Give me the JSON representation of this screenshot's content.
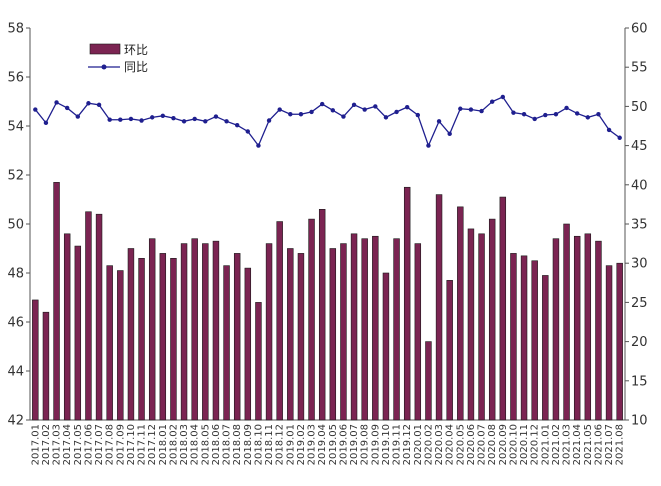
{
  "colors": {
    "bar_fill": "#7b2452",
    "bar_stroke": "#1a1a1a",
    "line": "#1f1f8f",
    "axis": "#555555"
  },
  "legend": {
    "bar_label": "环比",
    "line_label": "同比",
    "placement": "top-left"
  },
  "chart_data": {
    "type": "bar+line",
    "categories": [
      "2017.01",
      "2017.02",
      "2017.03",
      "2017.04",
      "2017.05",
      "2017.06",
      "2017.07",
      "2017.08",
      "2017.09",
      "2017.10",
      "2017.11",
      "2017.12",
      "2018.01",
      "2018.02",
      "2018.03",
      "2018.04",
      "2018.05",
      "2018.06",
      "2018.07",
      "2018.08",
      "2018.09",
      "2018.10",
      "2018.11",
      "2018.12",
      "2019.01",
      "2019.02",
      "2019.03",
      "2019.04",
      "2019.05",
      "2019.06",
      "2019.07",
      "2019.08",
      "2019.09",
      "2019.10",
      "2019.11",
      "2019.12",
      "2020.01",
      "2020.02",
      "2020.03",
      "2020.04",
      "2020.05",
      "2020.06",
      "2020.07",
      "2020.08",
      "2020.09",
      "2020.10",
      "2020.11",
      "2020.12",
      "2021.01",
      "2021.02",
      "2021.03",
      "2021.04",
      "2021.05",
      "2021.06",
      "2021.07",
      "2021.08"
    ],
    "series": [
      {
        "name": "环比",
        "type": "bar",
        "axis": "left",
        "values": [
          46.9,
          46.4,
          51.7,
          49.6,
          49.1,
          50.5,
          50.4,
          48.3,
          48.1,
          49.0,
          48.6,
          49.4,
          48.8,
          48.6,
          49.2,
          49.4,
          49.2,
          49.3,
          48.3,
          48.8,
          48.2,
          46.8,
          49.2,
          50.1,
          49.0,
          48.8,
          50.2,
          50.6,
          49.0,
          49.2,
          49.6,
          49.4,
          49.5,
          48.0,
          49.4,
          51.5,
          49.2,
          45.2,
          51.2,
          47.7,
          50.7,
          49.8,
          49.6,
          50.2,
          51.1,
          48.8,
          48.7,
          48.5,
          47.9,
          49.4,
          50.0,
          49.5,
          49.6,
          49.3,
          48.3,
          48.4
        ]
      },
      {
        "name": "同比",
        "type": "line",
        "axis": "right",
        "values": [
          49.6,
          47.9,
          50.5,
          49.8,
          48.7,
          50.4,
          50.2,
          48.3,
          48.3,
          48.4,
          48.2,
          48.6,
          48.8,
          48.5,
          48.1,
          48.4,
          48.1,
          48.7,
          48.1,
          47.6,
          46.8,
          45.0,
          48.2,
          49.6,
          49.0,
          49.0,
          49.3,
          50.3,
          49.5,
          48.7,
          50.2,
          49.6,
          50.0,
          48.6,
          49.3,
          49.9,
          48.9,
          45.0,
          48.1,
          46.5,
          49.7,
          49.6,
          49.4,
          50.6,
          51.2,
          49.2,
          49.0,
          48.4,
          48.9,
          49.0,
          49.8,
          49.1,
          48.6,
          49.0,
          47.0,
          46.0
        ]
      }
    ],
    "y_left": {
      "min": 42,
      "max": 58,
      "ticks": [
        42,
        44,
        46,
        48,
        50,
        52,
        54,
        56,
        58
      ]
    },
    "y_right": {
      "min": 10,
      "max": 60,
      "ticks": [
        10,
        15,
        20,
        25,
        30,
        35,
        40,
        45,
        50,
        55,
        60
      ]
    },
    "grid": false,
    "legend_placement": "top-left"
  }
}
